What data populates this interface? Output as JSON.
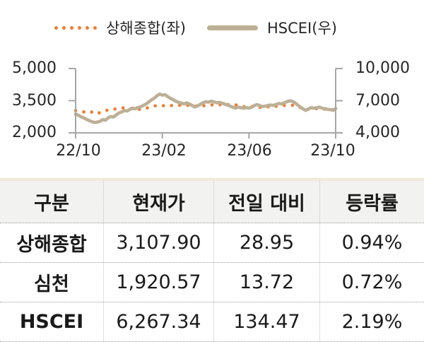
{
  "colors": {
    "sse_orange": "#ED7D31",
    "hscei_tan": "#BDB096",
    "axis_gray": "#A6A6A6",
    "table_top_border": "#F0EAD8",
    "table_header_bg": "#F2F2F1"
  },
  "chart_data": {
    "type": "line",
    "title": "",
    "x_axis": {
      "tick_labels": [
        "22/10",
        "23/02",
        "23/06",
        "23/10"
      ]
    },
    "left_axis": {
      "tick_labels": [
        "5,000",
        "3,500",
        "2,000"
      ],
      "min": 2000,
      "max": 5000
    },
    "right_axis": {
      "tick_labels": [
        "10,000",
        "7,000",
        "4,000"
      ],
      "min": 4000,
      "max": 10000
    },
    "legend_position": "top",
    "grid": false,
    "series": [
      {
        "name": "상해종합(좌)",
        "axis": "left",
        "line_style": "dotted",
        "color": "#ED7D31",
        "values": [
          3040,
          3020,
          3000,
          2980,
          2950,
          2920,
          2975,
          2915,
          2890,
          2950,
          2970,
          3030,
          3070,
          3090,
          3100,
          3120,
          3150,
          3160,
          3170,
          3150,
          3130,
          3140,
          3120,
          3100,
          3090,
          3120,
          3150,
          3180,
          3230,
          3255,
          3270,
          3265,
          3255,
          3280,
          3290,
          3270,
          3280,
          3290,
          3280,
          3300,
          3280,
          3290,
          3270,
          3230,
          3250,
          3260,
          3240,
          3270,
          3260,
          3280,
          3300,
          3320,
          3340,
          3330,
          3290,
          3320,
          3310,
          3340,
          3350,
          3310,
          3280,
          3250,
          3220,
          3230,
          3210,
          3230,
          3250,
          3220,
          3180,
          3210,
          3240,
          3220,
          3190,
          3210,
          3240,
          3230,
          3260,
          3280,
          3290,
          3280,
          3290,
          3260,
          3230,
          3180,
          3150,
          3120,
          3100,
          3130,
          3110,
          3130,
          3120,
          3110,
          3100,
          3110,
          3120,
          3080,
          3108
        ]
      },
      {
        "name": "HSCEI(우)",
        "axis": "right",
        "line_style": "solid",
        "color": "#BDB096",
        "values": [
          5750,
          5650,
          5500,
          5400,
          5250,
          5150,
          5050,
          4960,
          5000,
          5080,
          5230,
          5180,
          5400,
          5520,
          5480,
          5680,
          5850,
          5950,
          6080,
          6040,
          6180,
          6300,
          6250,
          6350,
          6430,
          6550,
          6700,
          6880,
          7080,
          7230,
          7450,
          7620,
          7520,
          7560,
          7380,
          7220,
          7100,
          6950,
          6850,
          6780,
          6700,
          6800,
          6700,
          6560,
          6420,
          6520,
          6650,
          6800,
          6900,
          6860,
          6950,
          6900,
          6800,
          6850,
          6760,
          6700,
          6600,
          6500,
          6400,
          6310,
          6400,
          6350,
          6300,
          6360,
          6300,
          6400,
          6550,
          6640,
          6540,
          6450,
          6500,
          6560,
          6600,
          6550,
          6650,
          6740,
          6700,
          6800,
          6900,
          6990,
          6940,
          6800,
          6600,
          6400,
          6220,
          6100,
          6250,
          6350,
          6300,
          6350,
          6400,
          6300,
          6250,
          6200,
          6160,
          6100,
          6267
        ]
      }
    ]
  },
  "table": {
    "columns": [
      "구분",
      "현재가",
      "전일 대비",
      "등락률"
    ],
    "rows": [
      [
        "상해종합",
        "3,107.90",
        "28.95",
        "0.94%"
      ],
      [
        "심천",
        "1,920.57",
        "13.72",
        "0.72%"
      ],
      [
        "HSCEI",
        "6,267.34",
        "134.47",
        "2.19%"
      ]
    ]
  }
}
